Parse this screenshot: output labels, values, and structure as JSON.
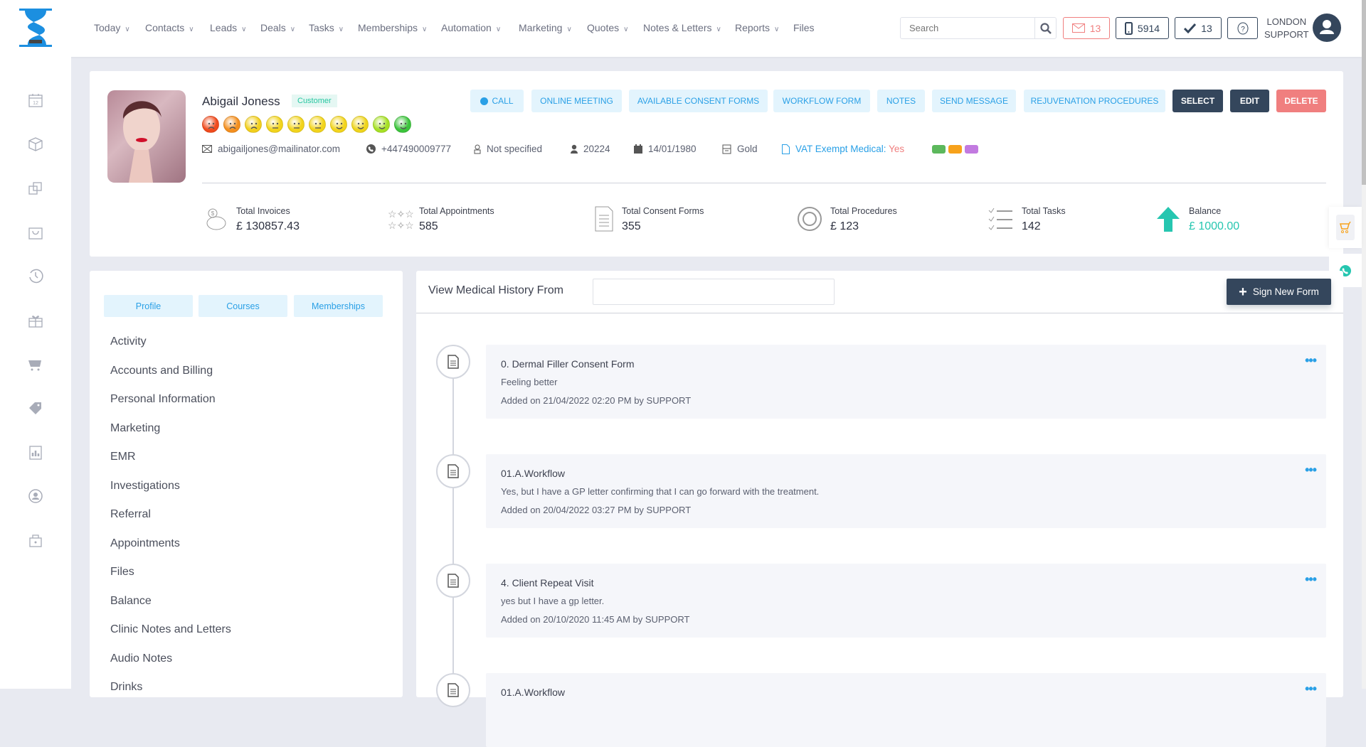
{
  "nav": {
    "items": [
      {
        "label": "Today",
        "dropdown": true
      },
      {
        "label": "Contacts",
        "dropdown": true
      },
      {
        "label": "Leads",
        "dropdown": true
      },
      {
        "label": "Deals",
        "dropdown": true
      },
      {
        "label": "Tasks",
        "dropdown": true
      },
      {
        "label": "Memberships",
        "dropdown": true
      },
      {
        "label": "Automation",
        "dropdown": true
      },
      {
        "label": "Marketing",
        "dropdown": true
      },
      {
        "label": "Quotes",
        "dropdown": true
      },
      {
        "label": "Notes & Letters",
        "dropdown": true
      },
      {
        "label": "Reports",
        "dropdown": true
      },
      {
        "label": "Files",
        "dropdown": false
      }
    ]
  },
  "header": {
    "search_placeholder": "Search",
    "mail_count": "13",
    "phone_count": "5914",
    "tasks_count": "13",
    "user_line1": "LONDON",
    "user_line2": "SUPPORT"
  },
  "sidebar": {
    "icons": [
      "calendar-icon",
      "box-icon",
      "copy-icon",
      "basket-icon",
      "history-icon",
      "gift-icon",
      "cart-icon",
      "tag-icon",
      "report-icon",
      "user-sync-icon",
      "lock-icon"
    ]
  },
  "profile": {
    "name": "Abigail Joness",
    "badge": "Customer",
    "email": "abigailjones@mailinator.com",
    "phone": "+447490009777",
    "gender": "Not specified",
    "id": "20224",
    "dob": "14/01/1980",
    "tier": "Gold",
    "vat_label": "VAT Exempt Medical:",
    "vat_value": "Yes",
    "tag_colors": [
      "#5cb85c",
      "#f7a21b",
      "#c27ae0"
    ],
    "mood_colors": [
      "#f04a1c",
      "#f48f1e",
      "#f2cf1c",
      "#f2d41c",
      "#f2d41c",
      "#f2d41c",
      "#f2d41c",
      "#eed41c",
      "#a6e024",
      "#3cc43c"
    ],
    "actions": [
      "CALL",
      "ONLINE MEETING",
      "AVAILABLE CONSENT FORMS",
      "WORKFLOW FORM",
      "NOTES",
      "SEND MESSAGE",
      "REJUVENATION PROCEDURES"
    ],
    "select": "SELECT",
    "edit": "EDIT",
    "delete": "DELETE"
  },
  "stats": [
    {
      "label": "Total Invoices",
      "value": "£ 130857.43"
    },
    {
      "label": "Total Appointments",
      "value": "585"
    },
    {
      "label": "Total Consent Forms",
      "value": "355"
    },
    {
      "label": "Total Procedures",
      "value": "£ 123"
    },
    {
      "label": "Total Tasks",
      "value": "142"
    },
    {
      "label": "Balance",
      "value": "£ 1000.00"
    }
  ],
  "left_panel": {
    "tabs": [
      "Profile",
      "Courses",
      "Memberships"
    ],
    "menu": [
      "Activity",
      "Accounts and Billing",
      "Personal Information",
      "Marketing",
      "EMR",
      "Investigations",
      "Referral",
      "Appointments",
      "Files",
      "Balance",
      "Clinic Notes and Letters",
      "Audio Notes",
      "Drinks"
    ]
  },
  "history": {
    "label": "View Medical History From",
    "from_value": "",
    "sign_button": "Sign New Form",
    "entries": [
      {
        "title": "0. Dermal Filler Consent Form",
        "desc": "Feeling better",
        "added": "Added on 21/04/2022 02:20 PM by SUPPORT"
      },
      {
        "title": "01.A.Workflow",
        "desc": "Yes, but I have a GP letter confirming that I can go forward with the treatment.",
        "added": "Added on 20/04/2022 03:27 PM by SUPPORT"
      },
      {
        "title": "4. Client Repeat Visit",
        "desc": "yes but I have a gp letter.",
        "added": "Added on 20/10/2020 11:45 AM by SUPPORT"
      },
      {
        "title": "01.A.Workflow",
        "desc": "",
        "added": ""
      }
    ]
  },
  "colors": {
    "accent": "#2aa0e6",
    "dark": "#34465c",
    "danger": "#f07f7f",
    "teal": "#26c6b0"
  }
}
